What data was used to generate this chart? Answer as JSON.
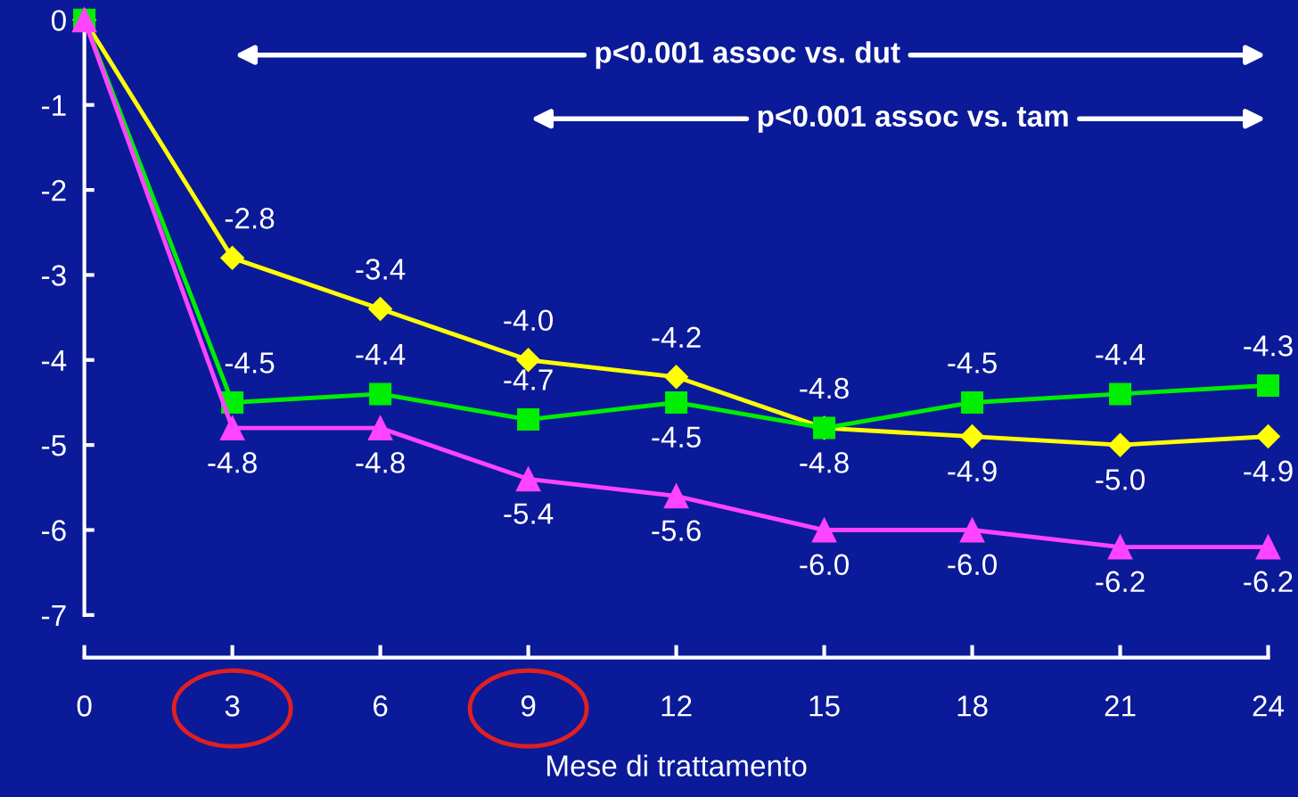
{
  "chart_data": {
    "type": "line",
    "xlabel": "Mese di trattamento",
    "x": [
      0,
      3,
      6,
      9,
      12,
      15,
      18,
      21,
      24
    ],
    "series": [
      {
        "color": "#ffff00",
        "marker": "diamond",
        "values": [
          0,
          -2.8,
          -3.4,
          -4.0,
          -4.2,
          -4.8,
          -4.9,
          -5.0,
          -4.9
        ],
        "value_labels": [
          null,
          "-2.8",
          "-3.4",
          "-4.0",
          "-4.2",
          "-4.8",
          "-4.9",
          "-5.0",
          "-4.9"
        ]
      },
      {
        "color": "#00ee00",
        "marker": "square",
        "values": [
          0,
          -4.5,
          -4.4,
          -4.7,
          -4.5,
          -4.8,
          -4.5,
          -4.4,
          -4.3
        ],
        "value_labels": [
          null,
          "-4.5",
          "-4.4",
          "-4.7",
          "-4.5",
          "-4.8",
          "-4.5",
          "-4.4",
          "-4.3"
        ]
      },
      {
        "color": "#ff44ff",
        "marker": "triangle",
        "values": [
          0,
          -4.8,
          -4.8,
          -5.4,
          -5.6,
          -6.0,
          -6.0,
          -6.2,
          -6.2
        ],
        "value_labels": [
          null,
          "-4.8",
          "-4.8",
          "-5.4",
          "-5.6",
          "-6.0",
          "-6.0",
          "-6.2",
          "-6.2"
        ]
      }
    ],
    "xlim": [
      0,
      24
    ],
    "xticks": [
      0,
      3,
      6,
      9,
      12,
      15,
      18,
      21,
      24
    ],
    "ylim": [
      -7.5,
      0
    ],
    "yticks": [
      0,
      -1,
      -2,
      -3,
      -4,
      -5,
      -6,
      -7
    ],
    "grid": false,
    "legend": false,
    "annotations": [
      "p<0.001 assoc vs. dut",
      "p<0.001 assoc vs. tam"
    ]
  }
}
